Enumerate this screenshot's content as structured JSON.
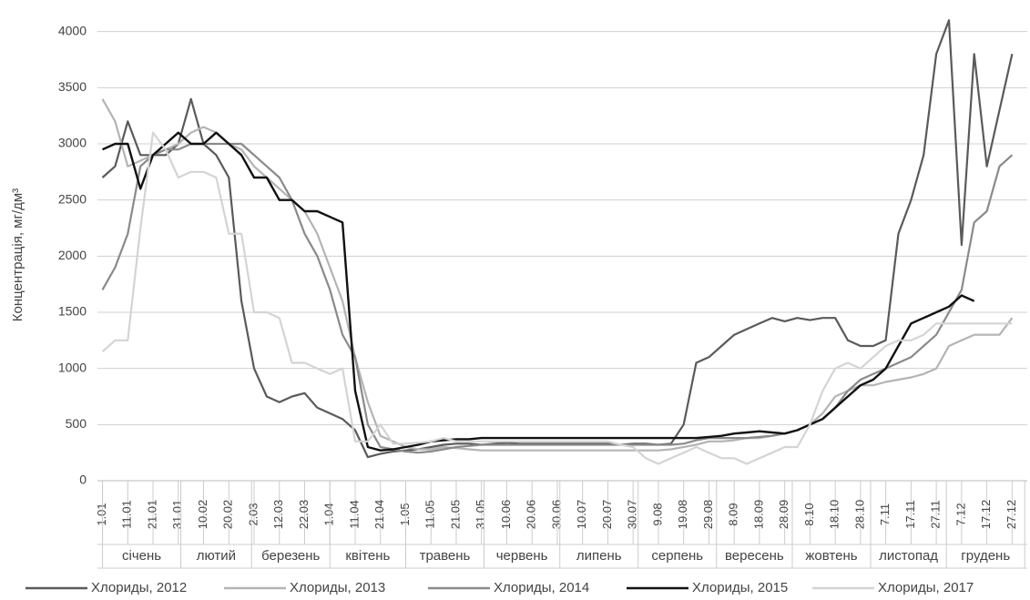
{
  "chart_data": {
    "type": "line",
    "ylabel": "Концентрація,  мг/дм³",
    "ylim": [
      0,
      4200
    ],
    "yticks": [
      0,
      500,
      1000,
      1500,
      2000,
      2500,
      3000,
      3500,
      4000
    ],
    "grid": true,
    "xlim": [
      -2,
      366
    ],
    "xticks": [
      {
        "value": 0,
        "label": "1.01"
      },
      {
        "value": 10,
        "label": "11.01"
      },
      {
        "value": 20,
        "label": "21.01"
      },
      {
        "value": 30,
        "label": "31.01"
      },
      {
        "value": 40,
        "label": "10.02"
      },
      {
        "value": 50,
        "label": "20.02"
      },
      {
        "value": 60,
        "label": "2.03"
      },
      {
        "value": 70,
        "label": "12.03"
      },
      {
        "value": 80,
        "label": "22.03"
      },
      {
        "value": 90,
        "label": "1.04"
      },
      {
        "value": 100,
        "label": "11.04"
      },
      {
        "value": 110,
        "label": "21.04"
      },
      {
        "value": 120,
        "label": "1.05"
      },
      {
        "value": 130,
        "label": "11.05"
      },
      {
        "value": 140,
        "label": "21.05"
      },
      {
        "value": 150,
        "label": "31.05"
      },
      {
        "value": 160,
        "label": "10.06"
      },
      {
        "value": 170,
        "label": "20.06"
      },
      {
        "value": 180,
        "label": "30.06"
      },
      {
        "value": 190,
        "label": "10.07"
      },
      {
        "value": 200,
        "label": "20.07"
      },
      {
        "value": 210,
        "label": "30.07"
      },
      {
        "value": 220,
        "label": "9.08"
      },
      {
        "value": 230,
        "label": "19.08"
      },
      {
        "value": 240,
        "label": "29.08"
      },
      {
        "value": 250,
        "label": "8.09"
      },
      {
        "value": 260,
        "label": "18.09"
      },
      {
        "value": 270,
        "label": "28.09"
      },
      {
        "value": 280,
        "label": "8.10"
      },
      {
        "value": 290,
        "label": "18.10"
      },
      {
        "value": 300,
        "label": "28.10"
      },
      {
        "value": 310,
        "label": "7.11"
      },
      {
        "value": 320,
        "label": "17.11"
      },
      {
        "value": 330,
        "label": "27.11"
      },
      {
        "value": 340,
        "label": "7.12"
      },
      {
        "value": 350,
        "label": "17.12"
      },
      {
        "value": 360,
        "label": "27.12"
      }
    ],
    "months": [
      "січень",
      "лютий",
      "березень",
      "квітень",
      "травень",
      "червень",
      "липень",
      "серпень",
      "вересень",
      "жовтень",
      "листопад",
      "грудень"
    ],
    "month_edges": [
      0,
      31,
      59,
      90,
      120,
      151,
      181,
      212,
      243,
      273,
      304,
      334,
      365
    ],
    "x": [
      0,
      5,
      10,
      15,
      20,
      25,
      30,
      35,
      40,
      45,
      50,
      55,
      60,
      65,
      70,
      75,
      80,
      85,
      90,
      95,
      100,
      105,
      110,
      115,
      120,
      125,
      130,
      135,
      140,
      145,
      150,
      155,
      160,
      165,
      170,
      175,
      180,
      185,
      190,
      195,
      200,
      205,
      210,
      215,
      220,
      225,
      230,
      235,
      240,
      245,
      250,
      255,
      260,
      265,
      270,
      275,
      280,
      285,
      290,
      295,
      300,
      305,
      310,
      315,
      320,
      325,
      330,
      335,
      340,
      345,
      350,
      355,
      360
    ],
    "series": [
      {
        "name": "Хлориды, 2012",
        "color": "#5a5a5a",
        "values": [
          2700,
          2800,
          3200,
          2900,
          2900,
          2900,
          3000,
          3400,
          3000,
          2900,
          2700,
          1600,
          1000,
          750,
          700,
          750,
          780,
          650,
          600,
          550,
          450,
          210,
          240,
          260,
          270,
          280,
          300,
          320,
          330,
          330,
          320,
          330,
          340,
          330,
          330,
          330,
          330,
          330,
          330,
          330,
          330,
          320,
          330,
          330,
          320,
          330,
          500,
          1050,
          1100,
          1200,
          1300,
          1350,
          1400,
          1450,
          1420,
          1450,
          1430,
          1450,
          1450,
          1250,
          1200,
          1200,
          1250,
          2200,
          2500,
          2900,
          3800,
          4100,
          2100,
          3800,
          2800,
          3300,
          3800
        ]
      },
      {
        "name": "Хлориды, 2013",
        "color": "#b4b4b4",
        "values": [
          3400,
          3200,
          2800,
          2850,
          2900,
          2950,
          3000,
          3100,
          3150,
          3100,
          3000,
          2950,
          2800,
          2700,
          2600,
          2500,
          2400,
          2200,
          1900,
          1600,
          1100,
          700,
          400,
          350,
          300,
          280,
          280,
          300,
          290,
          280,
          270,
          270,
          270,
          270,
          270,
          270,
          270,
          270,
          270,
          270,
          270,
          270,
          270,
          270,
          270,
          280,
          300,
          320,
          350,
          350,
          360,
          380,
          380,
          400,
          420,
          450,
          500,
          600,
          750,
          800,
          850,
          850,
          880,
          900,
          920,
          950,
          1000,
          1200,
          1250,
          1300,
          1300,
          1300,
          1450
        ]
      },
      {
        "name": "Хлориды, 2014",
        "color": "#8a8a8a",
        "values": [
          1700,
          1900,
          2200,
          2800,
          2900,
          2950,
          2950,
          3000,
          3000,
          3000,
          3000,
          3000,
          2900,
          2800,
          2700,
          2500,
          2200,
          2000,
          1700,
          1300,
          1100,
          500,
          300,
          280,
          260,
          250,
          260,
          280,
          300,
          310,
          320,
          320,
          320,
          320,
          320,
          320,
          320,
          320,
          320,
          320,
          320,
          320,
          320,
          320,
          320,
          320,
          330,
          360,
          380,
          380,
          380,
          380,
          390,
          400,
          420,
          450,
          500,
          550,
          650,
          800,
          900,
          950,
          1000,
          1050,
          1100,
          1200,
          1300,
          1500,
          1700,
          2300,
          2400,
          2800,
          2900
        ]
      },
      {
        "name": "Хлориды, 2015",
        "color": "#111111",
        "values": [
          2950,
          3000,
          3000,
          2600,
          2900,
          3000,
          3100,
          3000,
          3000,
          3100,
          3000,
          2900,
          2700,
          2700,
          2500,
          2500,
          2400,
          2400,
          2350,
          2300,
          800,
          300,
          270,
          280,
          300,
          320,
          350,
          360,
          370,
          370,
          380,
          380,
          380,
          380,
          380,
          380,
          380,
          380,
          380,
          380,
          380,
          380,
          380,
          380,
          380,
          380,
          380,
          380,
          390,
          400,
          420,
          430,
          440,
          430,
          420,
          450,
          500,
          550,
          650,
          750,
          850,
          900,
          1000,
          1200,
          1400,
          1450,
          1500,
          1550,
          1650,
          1600,
          null,
          null,
          null
        ]
      },
      {
        "name": "Хлориды, 2017",
        "color": "#d4d4d4",
        "values": [
          1150,
          1250,
          1250,
          2250,
          3100,
          2950,
          2700,
          2750,
          2750,
          2700,
          2200,
          2200,
          1500,
          1500,
          1450,
          1050,
          1050,
          1000,
          950,
          1000,
          350,
          350,
          500,
          330,
          330,
          340,
          350,
          380,
          350,
          350,
          350,
          350,
          350,
          350,
          350,
          350,
          350,
          350,
          350,
          350,
          350,
          320,
          300,
          200,
          150,
          200,
          250,
          300,
          250,
          200,
          200,
          150,
          200,
          250,
          300,
          300,
          500,
          800,
          1000,
          1050,
          1000,
          1100,
          1200,
          1250,
          1250,
          1300,
          1400,
          1400,
          1400,
          1400,
          1400,
          1400,
          1400
        ]
      }
    ]
  }
}
